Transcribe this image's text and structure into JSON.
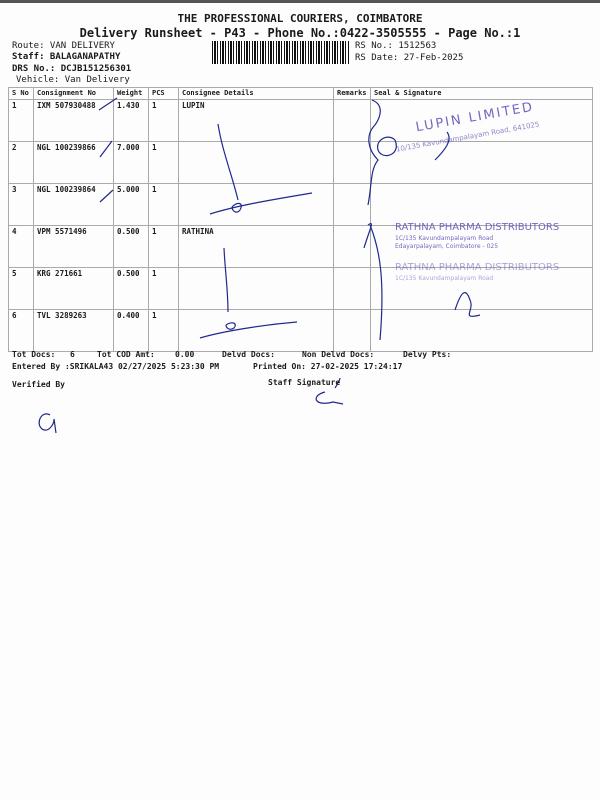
{
  "header": {
    "company": "THE PROFESSIONAL COURIERS, COIMBATORE",
    "subtitle": "Delivery Runsheet - P43 - Phone No.:0422-3505555 - Page No.:1",
    "route": "Route: VAN DELIVERY",
    "staff": "Staff: BALAGANAPATHY",
    "drs_no": "DRS No.: DCJB151256301",
    "vehicle": "Vehicle: Van Delivery",
    "rs_no": "RS No.: 1512563",
    "rs_date": "RS Date: 27-Feb-2025"
  },
  "table": {
    "columns": [
      "S No",
      "Consignment No",
      "Weight",
      "PCS",
      "Consignee Details",
      "Remarks",
      "Seal & Signature"
    ],
    "rows": [
      {
        "sno": "1",
        "consignment": "IXM 507930488",
        "weight": "1.430",
        "pcs": "1",
        "consignee": "LUPIN",
        "remarks": ""
      },
      {
        "sno": "2",
        "consignment": "NGL 100239866",
        "weight": "7.000",
        "pcs": "1",
        "consignee": "",
        "remarks": ""
      },
      {
        "sno": "3",
        "consignment": "NGL 100239864",
        "weight": "5.000",
        "pcs": "1",
        "consignee": "",
        "remarks": ""
      },
      {
        "sno": "4",
        "consignment": "VPM 5571496",
        "weight": "0.500",
        "pcs": "1",
        "consignee": "RATHINA",
        "remarks": ""
      },
      {
        "sno": "5",
        "consignment": "KRG 271661",
        "weight": "0.500",
        "pcs": "1",
        "consignee": "",
        "remarks": ""
      },
      {
        "sno": "6",
        "consignment": "TVL 3289263",
        "weight": "0.400",
        "pcs": "1",
        "consignee": "",
        "remarks": ""
      }
    ]
  },
  "stamps": {
    "lupin": "LUPIN LIMITED",
    "rathna": "RATHNA PHARMA DISTRIBUTORS"
  },
  "footer": {
    "tot_docs_label": "Tot Docs:",
    "tot_docs": "6",
    "tot_cod_label": "Tot COD Amt:",
    "tot_cod": "0.00",
    "delvd_docs": "Delvd Docs:",
    "non_delvd_docs": "Non Delvd Docs:",
    "delvy_pts": "Delvy Pts:",
    "entered_by": "Entered By :SRIKALA43 02/27/2025 5:23:30 PM",
    "printed_on": "Printed On: 27-02-2025 17:24:17",
    "verified_by": "Verified By",
    "staff_signature": "Staff Signature"
  }
}
